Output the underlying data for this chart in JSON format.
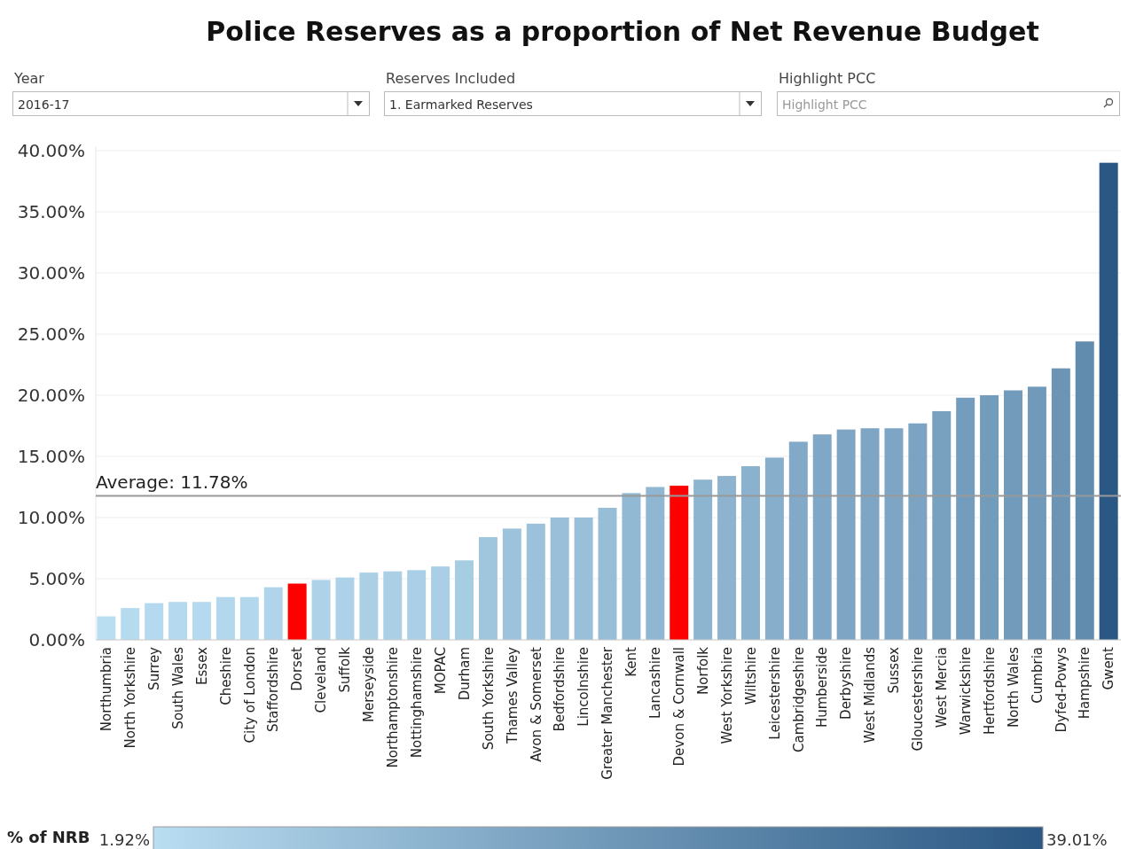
{
  "chart_data": {
    "type": "bar",
    "title": "Police Reserves as a proportion of Net Revenue Budget",
    "annotations": [
      "Year",
      "2016-17",
      "Reserves Included",
      "1. Earmarked Reserves",
      "Highlight PCC",
      "Highlight PCC",
      "1.92%",
      "39.01%"
    ],
    "categories": [
      "Northumbria",
      "North Yorkshire",
      "Surrey",
      "South Wales",
      "Essex",
      "Cheshire",
      "City of London",
      "Staffordshire",
      "Dorset",
      "Cleveland",
      "Suffolk",
      "Merseyside",
      "Northamptonshire",
      "Nottinghamshire",
      "MOPAC",
      "Durham",
      "South Yorkshire",
      "Thames Valley",
      "Avon & Somerset",
      "Bedfordshire",
      "Lincolnshire",
      "Greater Manchester",
      "Kent",
      "Lancashire",
      "Devon & Cornwall",
      "Norfolk",
      "West Yorkshire",
      "Wiltshire",
      "Leicestershire",
      "Cambridgeshire",
      "Humberside",
      "Derbyshire",
      "West Midlands",
      "Sussex",
      "Gloucestershire",
      "West Mercia",
      "Warwickshire",
      "Hertfordshire",
      "North Wales",
      "Cumbria",
      "Dyfed-Powys",
      "Hampshire",
      "Gwent"
    ],
    "values": [
      1.92,
      2.6,
      3.0,
      3.1,
      3.1,
      3.5,
      3.5,
      4.3,
      4.6,
      4.9,
      5.1,
      5.5,
      5.6,
      5.7,
      6.0,
      6.5,
      8.4,
      9.1,
      9.5,
      10.0,
      10.0,
      10.8,
      12.0,
      12.5,
      12.6,
      13.1,
      13.4,
      14.2,
      14.9,
      16.2,
      16.8,
      17.2,
      17.3,
      17.3,
      17.7,
      18.7,
      19.8,
      20.0,
      20.4,
      20.7,
      22.2,
      24.4,
      39.01
    ],
    "colors": [
      "#b9ddf1",
      "#b6dbef",
      "#b5d9ee",
      "#b5d9ee",
      "#b5d9ee",
      "#b3d7ec",
      "#b3d7ec",
      "#b0d4ea",
      "#ff0000",
      "#aed2e8",
      "#add1e8",
      "#abd0e6",
      "#abd0e6",
      "#aacfe6",
      "#a9cee5",
      "#a7cde3",
      "#a0c6de",
      "#9dc3dc",
      "#9cc2db",
      "#9ac0d9",
      "#9ac0d9",
      "#97bdd7",
      "#92b9d3",
      "#90b7d2",
      "#ff0000",
      "#8eb5d0",
      "#8db3cf",
      "#8ab1cd",
      "#87aecb",
      "#82a9c7",
      "#80a7c5",
      "#7ea6c4",
      "#7ea5c3",
      "#7ea5c3",
      "#7ca4c2",
      "#78a0bf",
      "#749cbc",
      "#739cbb",
      "#729aba",
      "#7199b9",
      "#6b94b5",
      "#628cae",
      "#2a5783"
    ],
    "ylim": [
      0,
      40
    ],
    "yticks": [
      {
        "value": 0,
        "label": "0.00%"
      },
      {
        "value": 5,
        "label": "5.00%"
      },
      {
        "value": 10,
        "label": "10.00%"
      },
      {
        "value": 15,
        "label": "15.00%"
      },
      {
        "value": 20,
        "label": "20.00%"
      },
      {
        "value": 25,
        "label": "25.00%"
      },
      {
        "value": 30,
        "label": "30.00%"
      },
      {
        "value": 35,
        "label": "35.00%"
      },
      {
        "value": 40,
        "label": "40.00%"
      }
    ],
    "grid": "y",
    "ref_lines": [
      {
        "axis": "y",
        "value": 11.78,
        "label": "Average: 11.78%",
        "color": "#999999"
      }
    ],
    "clabel": "% of NRB",
    "legend": "bottom"
  }
}
